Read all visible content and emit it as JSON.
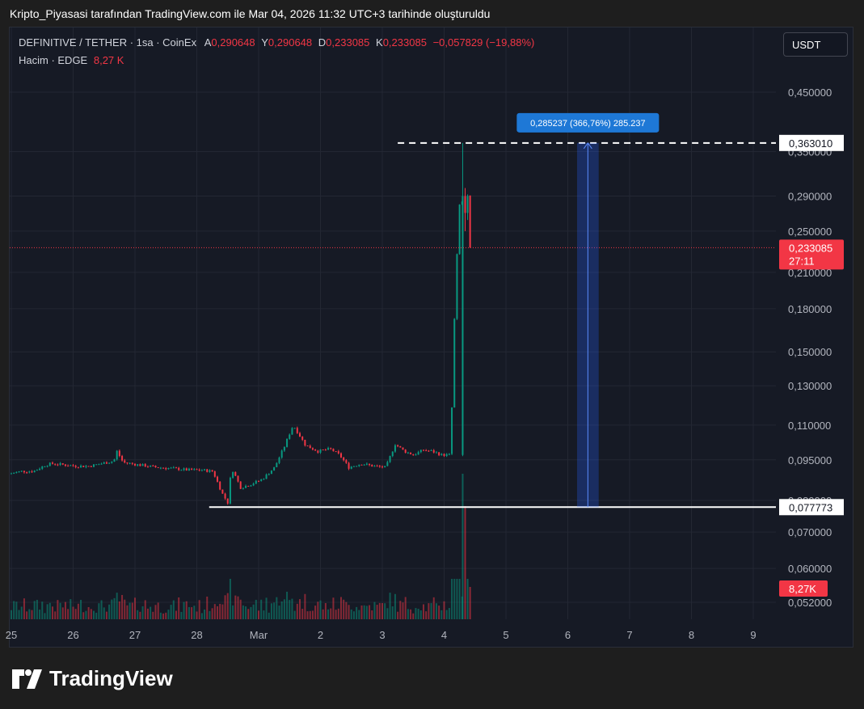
{
  "header": {
    "caption": "Kripto_Piyasasi tarafından TradingView.com ile Mar 04, 2026 11:32 UTC+3 tarihinde oluşturuldu"
  },
  "legend": {
    "symbol": "DEFINITIVE / TETHER · 1sa · CoinEx",
    "open_label": "A",
    "open": "0,290648",
    "high_label": "Y",
    "high": "0,290648",
    "low_label": "D",
    "low": "0,233085",
    "close_label": "K",
    "close": "0,233085",
    "change": "−0,057829 (−19,88%)",
    "volume_label": "Hacim · EDGE",
    "volume": "8,27 K"
  },
  "currency_button": "USDT",
  "brand": "TradingView",
  "colors": {
    "up": "#089981",
    "down": "#f23645",
    "background": "#161a25",
    "measure": "#2962ff"
  },
  "chart_data": {
    "type": "candlestick",
    "y_scale": "log",
    "y_ticks": [
      {
        "value": 0.45,
        "label": "0,450000"
      },
      {
        "value": 0.35,
        "label": "0,350000"
      },
      {
        "value": 0.29,
        "label": "0,290000"
      },
      {
        "value": 0.25,
        "label": "0,250000"
      },
      {
        "value": 0.21,
        "label": "0,210000"
      },
      {
        "value": 0.18,
        "label": "0,180000"
      },
      {
        "value": 0.15,
        "label": "0,150000"
      },
      {
        "value": 0.13,
        "label": "0,130000"
      },
      {
        "value": 0.11,
        "label": "0,110000"
      },
      {
        "value": 0.095,
        "label": "0,095000"
      },
      {
        "value": 0.08,
        "label": "0,080000"
      },
      {
        "value": 0.07,
        "label": "0,070000"
      },
      {
        "value": 0.06,
        "label": "0,060000"
      },
      {
        "value": 0.052,
        "label": "0,052000"
      }
    ],
    "x_ticks": [
      {
        "day": 0,
        "label": "25"
      },
      {
        "day": 1,
        "label": "26"
      },
      {
        "day": 2,
        "label": "27"
      },
      {
        "day": 3,
        "label": "28"
      },
      {
        "day": 4,
        "label": "Mar"
      },
      {
        "day": 5,
        "label": "2"
      },
      {
        "day": 6,
        "label": "3"
      },
      {
        "day": 7,
        "label": "4"
      },
      {
        "day": 8,
        "label": "5"
      },
      {
        "day": 9,
        "label": "6"
      },
      {
        "day": 10,
        "label": "7"
      },
      {
        "day": 11,
        "label": "8"
      },
      {
        "day": 12,
        "label": "9"
      }
    ],
    "price_path": [
      [
        0,
        0.0895
      ],
      [
        0.2,
        0.0905
      ],
      [
        0.4,
        0.0905
      ],
      [
        0.6,
        0.093
      ],
      [
        0.7,
        0.0935
      ],
      [
        0.9,
        0.093
      ],
      [
        1.1,
        0.0925
      ],
      [
        1.3,
        0.0925
      ],
      [
        1.5,
        0.0935
      ],
      [
        1.7,
        0.0945
      ],
      [
        1.75,
        0.0985
      ],
      [
        1.85,
        0.094
      ],
      [
        2.1,
        0.093
      ],
      [
        2.4,
        0.092
      ],
      [
        2.7,
        0.0915
      ],
      [
        2.9,
        0.091
      ],
      [
        3.1,
        0.091
      ],
      [
        3.3,
        0.0905
      ],
      [
        3.45,
        0.0825
      ],
      [
        3.55,
        0.079
      ],
      [
        3.6,
        0.092
      ],
      [
        3.75,
        0.0845
      ],
      [
        3.9,
        0.0855
      ],
      [
        4.1,
        0.0875
      ],
      [
        4.3,
        0.092
      ],
      [
        4.45,
        0.1
      ],
      [
        4.6,
        0.11
      ],
      [
        4.8,
        0.101
      ],
      [
        5.0,
        0.0985
      ],
      [
        5.2,
        0.0995
      ],
      [
        5.35,
        0.097
      ],
      [
        5.5,
        0.092
      ],
      [
        5.7,
        0.0935
      ],
      [
        5.9,
        0.0925
      ],
      [
        6.1,
        0.092
      ],
      [
        6.25,
        0.1015
      ],
      [
        6.4,
        0.0985
      ],
      [
        6.55,
        0.097
      ],
      [
        6.7,
        0.099
      ],
      [
        6.85,
        0.0985
      ],
      [
        7.0,
        0.097
      ],
      [
        7.15,
        0.097
      ],
      [
        7.3,
        0.29
      ],
      [
        7.35,
        0.28
      ],
      [
        7.4,
        0.29
      ],
      [
        7.45,
        0.233085
      ]
    ],
    "last_price": {
      "value": 0.233085,
      "label": "0,233085",
      "countdown": "27:11"
    },
    "horizontal_lines": [
      {
        "value": 0.36301,
        "label": "0,363010",
        "style": "dashed",
        "x_start": 6.25
      },
      {
        "value": 0.077773,
        "label": "0,077773",
        "style": "solid",
        "x_start": 3.2
      }
    ],
    "measure": {
      "x_start": 9.15,
      "x_end": 9.5,
      "low": 0.077773,
      "high": 0.36301,
      "label": "0,285237 (366,76%) 285.237"
    },
    "volume": {
      "label": "8,27K",
      "spike_day": 7.3,
      "spike_label_value": 8.27
    }
  }
}
